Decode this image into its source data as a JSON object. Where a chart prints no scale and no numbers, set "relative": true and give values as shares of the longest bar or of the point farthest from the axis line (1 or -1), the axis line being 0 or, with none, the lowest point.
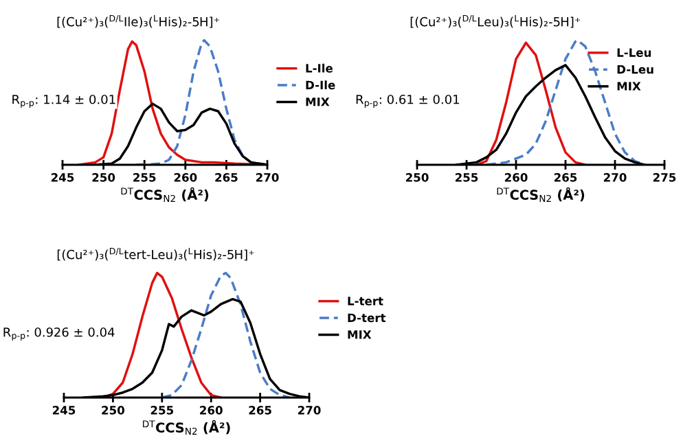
{
  "chart_data": [
    {
      "type": "line",
      "title": "[(Cu²⁺)₃($^{D/L}$Ile)₃($^{L}$His)₂-5H]⁺",
      "xlabel": "$^{DT}$CCS$_{N2}$ (Å²)",
      "annotations": [
        "R$_{p-p}$: 1.14 ± 0.01"
      ],
      "relative": true,
      "xlim": [
        245,
        270
      ],
      "xticks": [
        245,
        250,
        255,
        260,
        265,
        270
      ],
      "legend": "right",
      "grid": false,
      "series": [
        {
          "name": "L-Ile",
          "color": "#e01010",
          "line_style": "solid",
          "x": [
            247,
            248,
            249,
            250,
            251,
            252,
            253,
            253.5,
            254,
            255,
            256,
            257,
            258,
            259,
            260,
            262,
            263.5,
            266,
            270
          ],
          "values": [
            0,
            0.01,
            0.02,
            0.06,
            0.25,
            0.6,
            0.93,
            0.99,
            0.96,
            0.75,
            0.45,
            0.25,
            0.14,
            0.08,
            0.04,
            0.02,
            0.02,
            0.01,
            0
          ]
        },
        {
          "name": "D-Ile",
          "color": "#4a7cc8",
          "line_style": "dashed",
          "x": [
            254,
            256,
            257,
            258,
            259,
            260,
            261,
            262,
            262.3,
            263,
            264,
            265,
            266,
            267,
            268,
            270
          ],
          "values": [
            0,
            0.005,
            0.01,
            0.04,
            0.15,
            0.4,
            0.75,
            0.98,
            1.0,
            0.95,
            0.75,
            0.45,
            0.2,
            0.07,
            0.02,
            0
          ]
        },
        {
          "name": "MIX",
          "color": "#000000",
          "line_style": "solid",
          "x": [
            249,
            251,
            252,
            253,
            254,
            255,
            256,
            257,
            258,
            259,
            260,
            261,
            262,
            263,
            264,
            265,
            266,
            267,
            268,
            270
          ],
          "values": [
            0,
            0.01,
            0.05,
            0.15,
            0.3,
            0.43,
            0.49,
            0.45,
            0.34,
            0.27,
            0.28,
            0.32,
            0.42,
            0.45,
            0.43,
            0.33,
            0.17,
            0.07,
            0.02,
            0
          ]
        }
      ]
    },
    {
      "type": "line",
      "title": "[(Cu²⁺)₃($^{D/L}$Leu)₃($^{L}$His)₂-5H]⁺",
      "xlabel": "$^{DT}$CCS$_{N2}$ (Å²)",
      "annotations": [
        "R$_{p-p}$: 0.61 ± 0.01"
      ],
      "relative": true,
      "xlim": [
        250,
        275
      ],
      "xticks": [
        250,
        255,
        260,
        265,
        270,
        275
      ],
      "legend": "top right",
      "grid": false,
      "series": [
        {
          "name": "L-Leu",
          "color": "#e01010",
          "line_style": "solid",
          "x": [
            256,
            257,
            258,
            259,
            260,
            261,
            262,
            263,
            264,
            265,
            266,
            267
          ],
          "values": [
            0,
            0.03,
            0.2,
            0.5,
            0.85,
            0.98,
            0.88,
            0.6,
            0.3,
            0.1,
            0.02,
            0
          ]
        },
        {
          "name": "D-Leu",
          "color": "#4a7cc8",
          "line_style": "dashed",
          "x": [
            257,
            259,
            261,
            262,
            263,
            264,
            265,
            266,
            266.2,
            267,
            268,
            269,
            270,
            271,
            272,
            273
          ],
          "values": [
            0,
            0.02,
            0.08,
            0.17,
            0.35,
            0.6,
            0.85,
            0.99,
            1.0,
            0.95,
            0.75,
            0.5,
            0.25,
            0.1,
            0.03,
            0
          ]
        },
        {
          "name": "MIX",
          "color": "#000000",
          "line_style": "solid",
          "x": [
            254,
            256,
            257,
            258,
            259,
            260,
            261,
            262,
            263,
            264,
            265,
            266,
            267,
            268,
            269,
            270,
            271,
            272,
            273
          ],
          "values": [
            0,
            0.02,
            0.06,
            0.12,
            0.25,
            0.42,
            0.55,
            0.63,
            0.7,
            0.76,
            0.8,
            0.7,
            0.55,
            0.38,
            0.22,
            0.11,
            0.05,
            0.02,
            0
          ]
        }
      ]
    },
    {
      "type": "line",
      "title": "[(Cu²⁺)₃($^{D/L}$tert-Leu)₃($^{L}$His)₂-5H]⁺",
      "xlabel": "$^{DT}$CCS$_{N2}$ (Å²)",
      "annotations": [
        "R$_{p-p}$: 0.926 ± 0.04"
      ],
      "relative": true,
      "xlim": [
        245,
        270
      ],
      "xticks": [
        245,
        250,
        255,
        260,
        265,
        270
      ],
      "legend": "right",
      "grid": false,
      "series": [
        {
          "name": "L-tert",
          "color": "#e01010",
          "line_style": "solid",
          "x": [
            249,
            250,
            251,
            252,
            253,
            254,
            254.5,
            255,
            256,
            257,
            258,
            259,
            260,
            261
          ],
          "values": [
            0,
            0.03,
            0.12,
            0.35,
            0.65,
            0.92,
            1.0,
            0.97,
            0.8,
            0.55,
            0.32,
            0.12,
            0.02,
            0
          ]
        },
        {
          "name": "D-tert",
          "color": "#4a7cc8",
          "line_style": "dashed",
          "x": [
            255,
            256,
            257,
            258,
            259,
            260,
            261,
            261.5,
            262,
            263,
            264,
            265,
            266,
            267,
            268
          ],
          "values": [
            0,
            0.02,
            0.1,
            0.3,
            0.55,
            0.82,
            0.98,
            1.0,
            0.96,
            0.75,
            0.45,
            0.2,
            0.07,
            0.02,
            0
          ]
        },
        {
          "name": "MIX",
          "color": "#000000",
          "line_style": "solid",
          "x": [
            247,
            249,
            250,
            251,
            252,
            253,
            254,
            255,
            255.7,
            256.2,
            257,
            258,
            259.3,
            260,
            261,
            262.2,
            263,
            264,
            265,
            266,
            267,
            268,
            269,
            270
          ],
          "values": [
            0,
            0.01,
            0.02,
            0.04,
            0.07,
            0.12,
            0.2,
            0.38,
            0.59,
            0.57,
            0.65,
            0.7,
            0.66,
            0.69,
            0.75,
            0.79,
            0.77,
            0.6,
            0.35,
            0.15,
            0.06,
            0.03,
            0.01,
            0
          ]
        }
      ]
    }
  ]
}
